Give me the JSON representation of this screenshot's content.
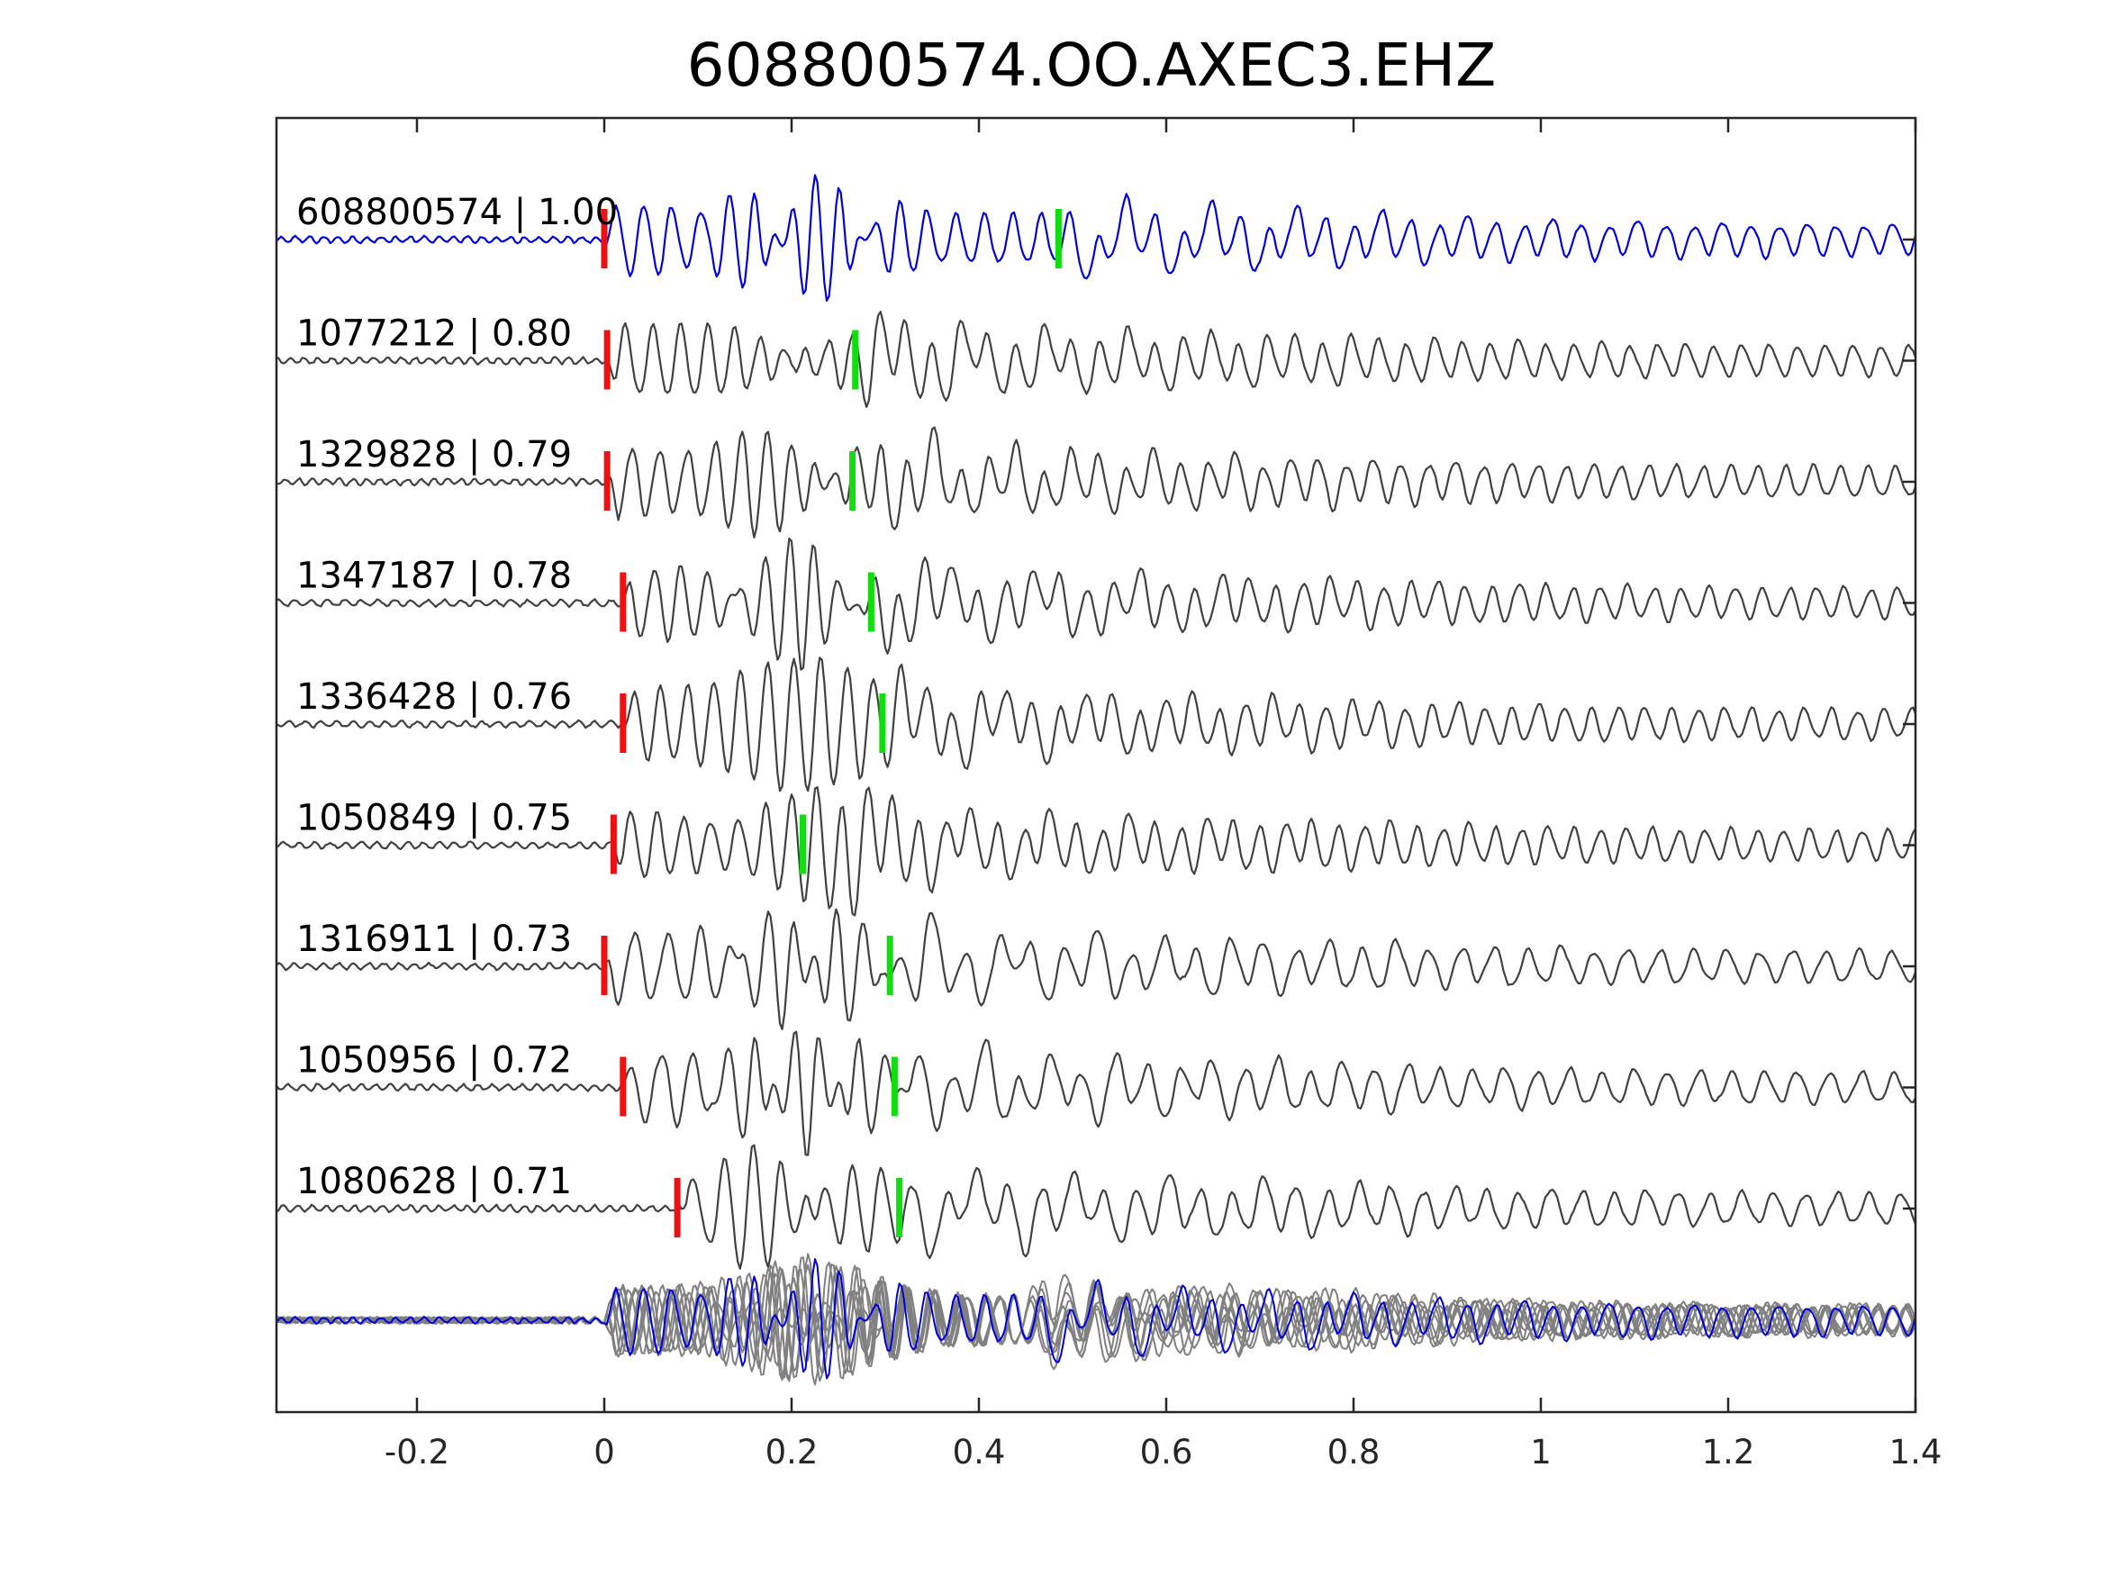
{
  "chart_data": {
    "type": "line",
    "title": "608800574.OO.AXEC3.EHZ",
    "xlabel": "",
    "ylabel": "",
    "xlim": [
      -0.35,
      1.4
    ],
    "x_ticks": [
      -0.2,
      0,
      0.2,
      0.4,
      0.6,
      0.8,
      1,
      1.2,
      1.4
    ],
    "x_tick_labels": [
      "-0.2",
      "0",
      "0.2",
      "0.4",
      "0.6",
      "0.8",
      "1",
      "1.2",
      "1.4"
    ],
    "y_ticks_visible": false,
    "grid": false,
    "legend": "none",
    "colors": {
      "master": "#0000dd",
      "trace": "#404040",
      "stack_trace": "#808080",
      "p_pick": "#ee1111",
      "s_pick": "#11dd11",
      "axis": "#262626"
    },
    "traces": [
      {
        "event_id": "608800574",
        "cc": "1.00",
        "label": "608800574 | 1.00",
        "p_pick": 0.0,
        "s_pick": 0.485,
        "master": true
      },
      {
        "event_id": "1077212",
        "cc": "0.80",
        "label": "1077212 | 0.80",
        "p_pick": 0.003,
        "s_pick": 0.268,
        "master": false
      },
      {
        "event_id": "1329828",
        "cc": "0.79",
        "label": "1329828 | 0.79",
        "p_pick": 0.003,
        "s_pick": 0.265,
        "master": false
      },
      {
        "event_id": "1347187",
        "cc": "0.78",
        "label": "1347187 | 0.78",
        "p_pick": 0.02,
        "s_pick": 0.285,
        "master": false
      },
      {
        "event_id": "1336428",
        "cc": "0.76",
        "label": "1336428 | 0.76",
        "p_pick": 0.02,
        "s_pick": 0.297,
        "master": false
      },
      {
        "event_id": "1050849",
        "cc": "0.75",
        "label": "1050849 | 0.75",
        "p_pick": 0.01,
        "s_pick": 0.212,
        "master": false
      },
      {
        "event_id": "1316911",
        "cc": "0.73",
        "label": "1316911 | 0.73",
        "p_pick": 0.0,
        "s_pick": 0.305,
        "master": false
      },
      {
        "event_id": "1050956",
        "cc": "0.72",
        "label": "1050956 | 0.72",
        "p_pick": 0.02,
        "s_pick": 0.31,
        "master": false
      },
      {
        "event_id": "1080628",
        "cc": "0.71",
        "label": "1080628 | 0.71",
        "p_pick": 0.078,
        "s_pick": 0.315,
        "master": false
      }
    ],
    "stack": {
      "overlay_of_all_traces": true,
      "master_on_top": true
    }
  }
}
